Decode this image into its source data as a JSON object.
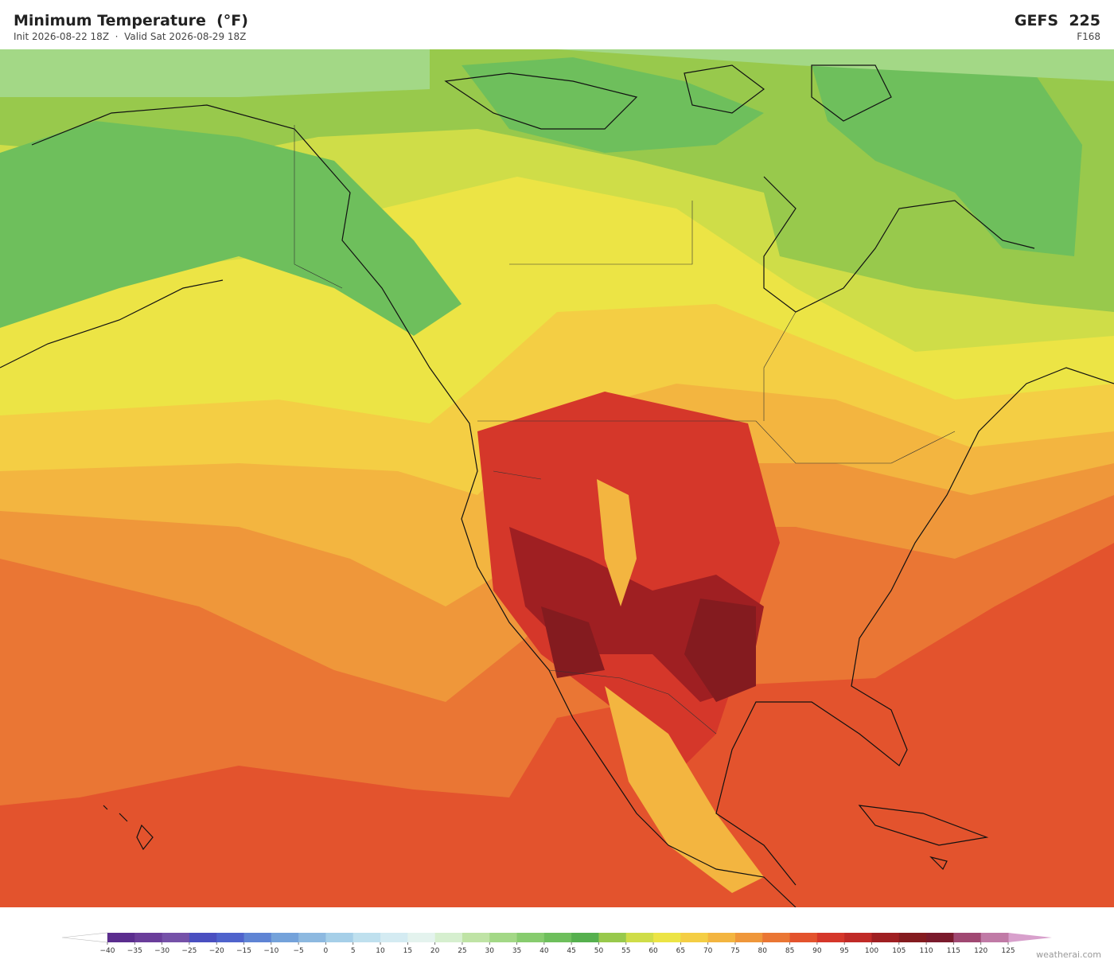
{
  "header": {
    "title": "Minimum Temperature  (°F)",
    "subtitle": "Init 2026-08-22 18Z  ·  Valid Sat 2026-08-29 18Z",
    "model": "GEFS  225",
    "forecast_hour": "F168"
  },
  "colorbar": {
    "ticks": [
      {
        "value": -40,
        "label": "−40"
      },
      {
        "value": -35,
        "label": "−35"
      },
      {
        "value": -30,
        "label": "−30"
      },
      {
        "value": -25,
        "label": "−25"
      },
      {
        "value": -20,
        "label": "−20"
      },
      {
        "value": -15,
        "label": "−15"
      },
      {
        "value": -10,
        "label": "−10"
      },
      {
        "value": -5,
        "label": "−5"
      },
      0,
      5,
      10,
      15,
      20,
      25,
      30,
      35,
      40,
      45,
      50,
      55,
      60,
      65,
      70,
      75,
      80,
      85,
      90,
      95,
      100,
      105,
      110,
      115,
      120,
      125
    ],
    "colors": [
      "#5b2d8e",
      "#6a3d9a",
      "#7551a8",
      "#4a4fc0",
      "#4f63cc",
      "#5f84d4",
      "#74a2da",
      "#8db9e0",
      "#a6cfe8",
      "#bfe0ee",
      "#d4ebf2",
      "#e4f3ee",
      "#d6efcf",
      "#bfe3a5",
      "#a3d886",
      "#87cc6e",
      "#6ebf5c",
      "#56b04e",
      "#98c94c",
      "#cfdd48",
      "#ece445",
      "#f4ce44",
      "#f3b540",
      "#ef973a",
      "#ea7634",
      "#e3532d",
      "#d5372a",
      "#c02a27",
      "#9f1f22",
      "#841b1f",
      "#7a1a2c",
      "#a04872",
      "#c07aa6"
    ],
    "under_color": "#ffffff",
    "over_color": "#d8a0cc"
  },
  "watermark": "weatherai.com"
}
